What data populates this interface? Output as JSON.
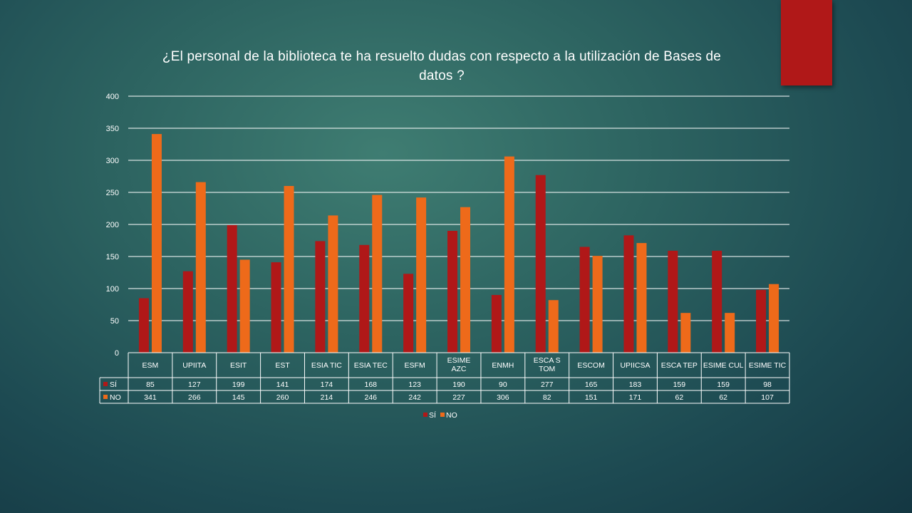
{
  "slide": {
    "title": "¿El personal de la biblioteca te ha resuelto dudas con respecto a la utilización de Bases de datos ?"
  },
  "colors": {
    "accent_tab": "#b01818",
    "series_si": "#b01818",
    "series_no": "#ee6a1a"
  },
  "chart_data": {
    "type": "bar",
    "title": "¿El personal de la biblioteca te ha resuelto dudas con respecto a la utilización de Bases de datos ?",
    "categories": [
      "ESM",
      "UPIITA",
      "ESIT",
      "EST",
      "ESIA TIC",
      "ESIA TEC",
      "ESFM",
      "ESIME AZC",
      "ENMH",
      "ESCA S TOM",
      "ESCOM",
      "UPIICSA",
      "ESCA TEP",
      "ESIME CUL",
      "ESIME TIC"
    ],
    "series": [
      {
        "name": "SÍ",
        "values": [
          85,
          127,
          199,
          141,
          174,
          168,
          123,
          190,
          90,
          277,
          165,
          183,
          159,
          159,
          98
        ]
      },
      {
        "name": "NO",
        "values": [
          341,
          266,
          145,
          260,
          214,
          246,
          242,
          227,
          306,
          82,
          151,
          171,
          62,
          62,
          107
        ]
      }
    ],
    "ylim": [
      0,
      400
    ],
    "yticks": [
      0,
      50,
      100,
      150,
      200,
      250,
      300,
      350,
      400
    ],
    "grid": true,
    "legend": "bottom",
    "data_table": true
  }
}
